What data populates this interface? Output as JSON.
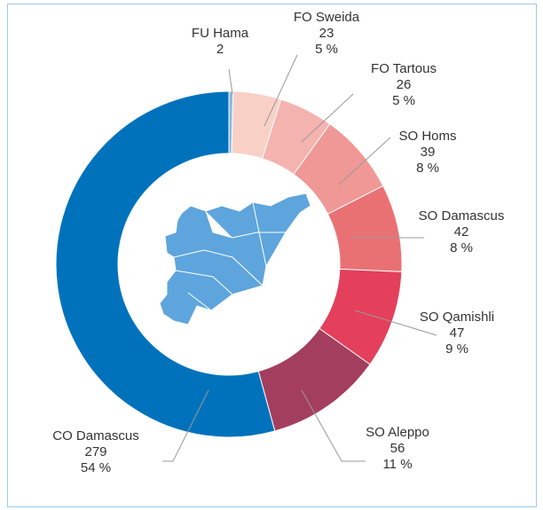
{
  "chart_data": {
    "type": "donut",
    "categories": [
      "FU Hama",
      "FO Sweida",
      "FO Tartous",
      "SO Homs",
      "SO Damascus",
      "SO Qamishli",
      "SO Aleppo",
      "CO Damascus"
    ],
    "values": [
      2,
      23,
      26,
      39,
      42,
      47,
      56,
      279
    ],
    "percent_labels": [
      null,
      "5 %",
      "5 %",
      "8 %",
      "8 %",
      "9 %",
      "11 %",
      "54 %"
    ],
    "colors": [
      "#8db8dd",
      "#f9d0c6",
      "#f5b3b0",
      "#f09896",
      "#ea7173",
      "#e43f5b",
      "#a43e5e",
      "#0072bc"
    ]
  }
}
